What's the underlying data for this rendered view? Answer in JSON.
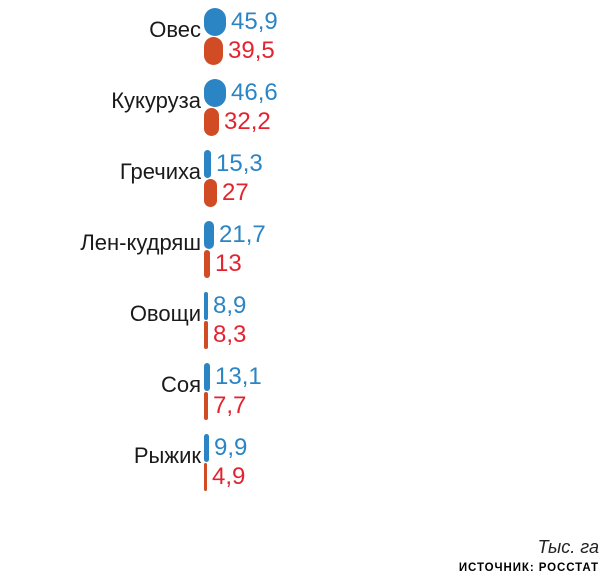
{
  "chart_data": {
    "type": "bar",
    "subtype": "pictorial-pill-width",
    "title": "",
    "categories": [
      "Овес",
      "Кукуруза",
      "Гречиха",
      "Лен-кудряш",
      "Овощи",
      "Соя",
      "Рыжик"
    ],
    "series": [
      {
        "name": "blue-series",
        "color": "#2B85C4",
        "values": [
          45.9,
          46.6,
          15.3,
          21.7,
          8.9,
          13.1,
          9.9
        ]
      },
      {
        "name": "red-series",
        "color": "#D14B24",
        "values": [
          39.5,
          32.2,
          27,
          13,
          8.3,
          7.7,
          4.9
        ]
      }
    ],
    "rows": [
      {
        "category": "Овес",
        "blue_label": "45,9",
        "blue_value": 45.9,
        "red_label": "39,5",
        "red_value": 39.5
      },
      {
        "category": "Кукуруза",
        "blue_label": "46,6",
        "blue_value": 46.6,
        "red_label": "32,2",
        "red_value": 32.2
      },
      {
        "category": "Гречиха",
        "blue_label": "15,3",
        "blue_value": 15.3,
        "red_label": "27",
        "red_value": 27
      },
      {
        "category": "Лен-кудряш",
        "blue_label": "21,7",
        "blue_value": 21.7,
        "red_label": "13",
        "red_value": 13
      },
      {
        "category": "Овощи",
        "blue_label": "8,9",
        "blue_value": 8.9,
        "red_label": "8,3",
        "red_value": 8.3
      },
      {
        "category": "Соя",
        "blue_label": "13,1",
        "blue_value": 13.1,
        "red_label": "7,7",
        "red_value": 7.7
      },
      {
        "category": "Рыжик",
        "blue_label": "9,9",
        "blue_value": 9.9,
        "red_label": "4,9",
        "red_value": 4.9
      }
    ],
    "colors": {
      "blue_marker": "#2B85C4",
      "blue_value_text": "#2B85C4",
      "red_marker": "#D14B24",
      "red_value_text": "#E32430",
      "category_text": "#1A1A1A"
    },
    "units_label": "Тыс. га",
    "source_label": "ИСТОЧНИК: РОССТАТ",
    "legend": "none",
    "grid": false
  }
}
